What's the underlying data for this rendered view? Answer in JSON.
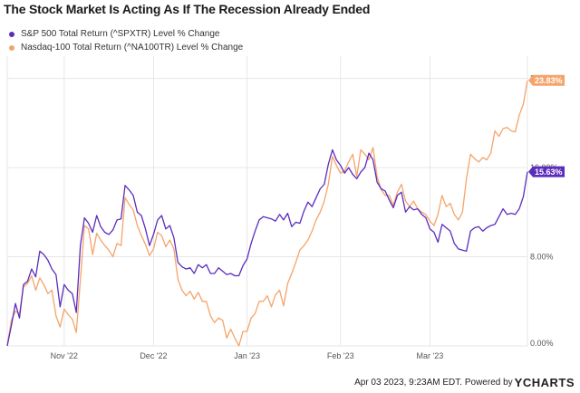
{
  "title": "The Stock Market Is Acting As If The Recession Already Ended",
  "legend": [
    {
      "name": "S&P 500 Total Return (^SPXTR) Level % Change",
      "color": "#5b2dbd"
    },
    {
      "name": "Nasdaq-100 Total Return (^NA100TR) Level % Change",
      "color": "#f4a46a"
    }
  ],
  "footer": {
    "date_text": "Apr 03 2023, 9:23AM EDT.",
    "powered_by": "Powered by",
    "brand_y": "Y",
    "brand_rest": "CHARTS"
  },
  "colors": {
    "grid": "#e6e6e6",
    "axis_text": "#555555"
  },
  "chart_data": {
    "type": "line",
    "ylim": [
      0,
      26
    ],
    "yticks": [
      0,
      8,
      16,
      24
    ],
    "ytick_labels": [
      "0.00%",
      "8.00%",
      "16.00%",
      "24.00%"
    ],
    "xtick_labels": [
      "Nov '22",
      "Dec '22",
      "Jan '23",
      "Feb '23",
      "Mar '23"
    ],
    "xtick_index": [
      14,
      36,
      59,
      82,
      104
    ],
    "x_count": 129,
    "end_labels": [
      "15.63%",
      "23.83%"
    ],
    "series": [
      {
        "name": "S&P 500 Total Return (^SPXTR) Level % Change",
        "color": "#5b2dbd",
        "values": [
          0.0,
          1.8,
          3.8,
          2.5,
          5.5,
          5.8,
          6.9,
          6.2,
          8.5,
          8.2,
          7.7,
          6.9,
          6.4,
          3.5,
          5.5,
          5.0,
          4.7,
          3.0,
          9.0,
          11.5,
          11.0,
          10.2,
          11.7,
          10.7,
          10.2,
          10.0,
          10.4,
          11.3,
          11.4,
          14.4,
          14.0,
          13.5,
          12.0,
          11.7,
          10.5,
          9.0,
          10.0,
          11.3,
          11.7,
          10.5,
          10.8,
          9.7,
          7.5,
          7.1,
          6.9,
          7.0,
          6.5,
          7.3,
          7.0,
          7.3,
          6.5,
          6.5,
          7.0,
          6.7,
          6.4,
          6.5,
          6.3,
          6.3,
          7.2,
          7.8,
          9.2,
          10.3,
          11.3,
          11.6,
          11.5,
          11.4,
          11.2,
          11.8,
          11.3,
          11.9,
          10.7,
          11.1,
          11.0,
          12.1,
          12.9,
          12.5,
          13.3,
          14.1,
          14.5,
          16.3,
          17.6,
          16.7,
          16.2,
          15.5,
          16.0,
          15.4,
          15.0,
          15.6,
          16.0,
          17.3,
          16.7,
          14.7,
          14.1,
          13.9,
          13.1,
          12.4,
          13.5,
          13.8,
          12.0,
          12.5,
          12.2,
          12.3,
          11.8,
          11.5,
          10.5,
          10.2,
          9.3,
          10.9,
          10.6,
          10.3,
          9.2,
          8.7,
          8.6,
          8.5,
          10.3,
          10.6,
          10.7,
          10.3,
          10.6,
          10.8,
          10.9,
          11.6,
          12.3,
          11.8,
          11.9,
          11.8,
          12.3,
          13.4,
          15.63
        ]
      },
      {
        "name": "Nasdaq-100 Total Return (^NA100TR) Level % Change",
        "color": "#f4a46a",
        "values": [
          0.0,
          2.3,
          3.1,
          2.9,
          5.3,
          5.6,
          6.3,
          5.0,
          6.1,
          5.5,
          4.7,
          5.0,
          2.7,
          1.7,
          3.3,
          2.8,
          2.4,
          1.2,
          5.9,
          10.8,
          10.5,
          8.2,
          10.1,
          9.5,
          9.0,
          8.6,
          8.0,
          9.2,
          9.0,
          13.3,
          12.7,
          12.2,
          10.8,
          9.9,
          9.1,
          8.1,
          8.7,
          10.2,
          9.9,
          8.9,
          9.5,
          8.7,
          6.0,
          5.0,
          4.5,
          4.9,
          4.2,
          4.8,
          4.0,
          4.0,
          2.7,
          2.1,
          2.5,
          2.3,
          0.7,
          1.5,
          0.7,
          0.0,
          1.3,
          1.3,
          2.5,
          2.9,
          4.0,
          4.0,
          4.5,
          3.5,
          4.6,
          5.0,
          3.6,
          5.6,
          6.5,
          7.5,
          8.6,
          9.0,
          9.5,
          10.3,
          11.3,
          12.0,
          13.0,
          14.5,
          17.0,
          16.2,
          15.5,
          15.7,
          16.5,
          17.2,
          15.2,
          17.6,
          17.2,
          16.7,
          17.8,
          15.2,
          14.0,
          13.5,
          13.5,
          12.6,
          13.8,
          14.5,
          13.0,
          12.5,
          13.0,
          12.3,
          12.0,
          11.8,
          11.2,
          10.8,
          11.8,
          13.5,
          12.5,
          12.8,
          11.8,
          11.3,
          12.0,
          15.0,
          17.2,
          16.8,
          16.5,
          16.9,
          16.7,
          17.3,
          19.3,
          18.8,
          19.5,
          19.6,
          19.3,
          19.2,
          20.7,
          21.7,
          23.83
        ]
      }
    ]
  }
}
